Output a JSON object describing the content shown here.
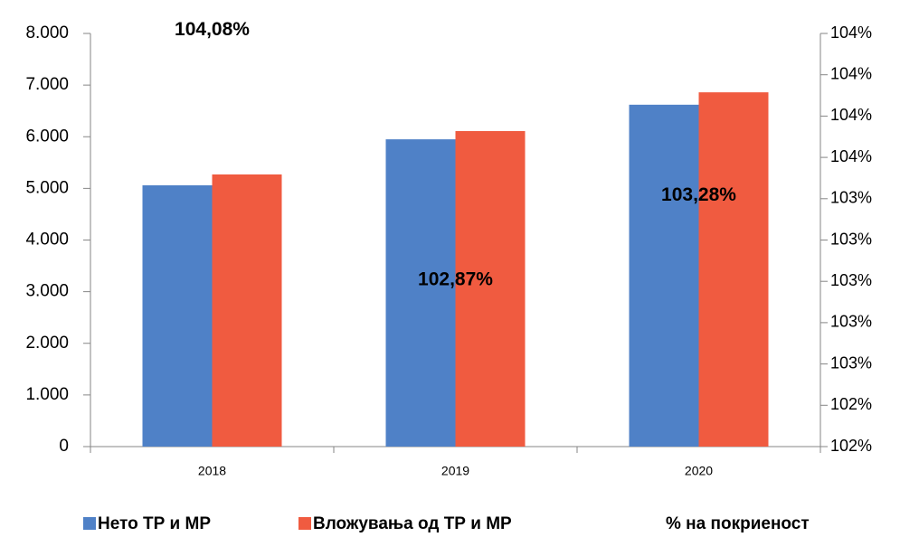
{
  "chart_data": {
    "type": "bar",
    "categories": [
      "2018",
      "2019",
      "2020"
    ],
    "series": [
      {
        "name": "Нето ТР и МР",
        "color": "#4f81c7",
        "values": [
          5060,
          5950,
          6620
        ]
      },
      {
        "name": "Вложувања од ТР и МР",
        "color": "#f05b40",
        "values": [
          5270,
          6110,
          6860
        ]
      },
      {
        "name": "% на покриеност",
        "axis": "y2",
        "values": [
          104.08,
          102.87,
          103.28
        ],
        "value_labels": [
          "104,08%",
          "102,87%",
          "103,28%"
        ]
      }
    ],
    "ylim": [
      0,
      8000
    ],
    "yticks": [
      0,
      {
        "value": 1000,
        "label": "1.000"
      },
      {
        "value": 2000,
        "label": "2.000"
      },
      {
        "value": 3000,
        "label": "3.000"
      },
      {
        "value": 4000,
        "label": "4.000"
      },
      {
        "value": 5000,
        "label": "5.000"
      },
      {
        "value": 6000,
        "label": "6.000"
      },
      {
        "value": 7000,
        "label": "7.000"
      },
      {
        "value": 8000,
        "label": "8.000"
      }
    ],
    "y2lim": [
      102.1,
      104.1
    ],
    "y2ticks": [
      {
        "value": 102.1,
        "label": "102%"
      },
      {
        "value": 102.3,
        "label": "102%"
      },
      {
        "value": 102.5,
        "label": "103%"
      },
      {
        "value": 102.7,
        "label": "103%"
      },
      {
        "value": 102.9,
        "label": "103%"
      },
      {
        "value": 103.1,
        "label": "103%"
      },
      {
        "value": 103.3,
        "label": "103%"
      },
      {
        "value": 103.5,
        "label": "104%"
      },
      {
        "value": 103.7,
        "label": "104%"
      },
      {
        "value": 103.9,
        "label": "104%"
      },
      {
        "value": 104.1,
        "label": "104%"
      }
    ],
    "legend": "bottom"
  }
}
